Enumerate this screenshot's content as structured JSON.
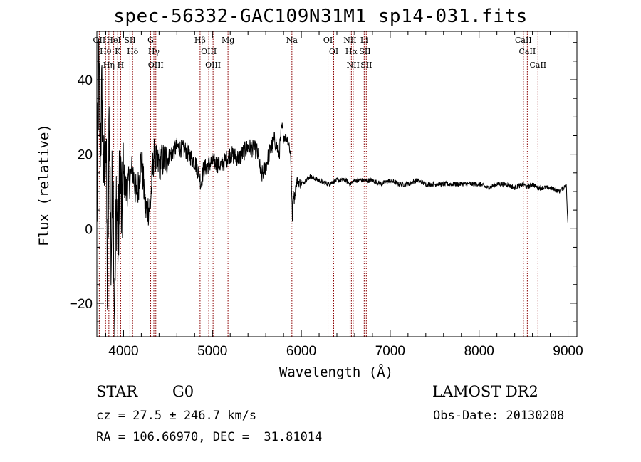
{
  "chart_data": {
    "type": "line",
    "title": "spec-56332-GAC109N31M1_sp14-031.fits",
    "xlabel": "Wavelength (Å)",
    "ylabel": "Flux (relative)",
    "xlim": [
      3700,
      9100
    ],
    "ylim": [
      -29,
      53
    ],
    "xticks": [
      4000,
      5000,
      6000,
      7000,
      8000,
      9000
    ],
    "yticks": [
      -20,
      0,
      20,
      40
    ],
    "grid": false,
    "line_color": "#000000",
    "marker_color": "#8b0000",
    "series": [
      {
        "x": [
          3700,
          3720,
          3740,
          3760,
          3780,
          3800,
          3820,
          3840,
          3860,
          3880,
          3900,
          3920,
          3940,
          3960,
          3980,
          4000,
          4030,
          4060,
          4100,
          4150,
          4200,
          4250,
          4300,
          4340,
          4380,
          4420,
          4500,
          4600,
          4700,
          4800,
          4850,
          4870,
          4900,
          5000,
          5100,
          5200,
          5300,
          5400,
          5500,
          5550,
          5600,
          5650,
          5700,
          5750,
          5780,
          5800,
          5850,
          5880,
          5900,
          5910,
          5920,
          5950,
          6000,
          6100,
          6200,
          6300,
          6400,
          6500,
          6550,
          6600,
          6700,
          6800,
          6900,
          7000,
          7100,
          7200,
          7300,
          7400,
          7500,
          7600,
          7700,
          7800,
          7900,
          8000,
          8100,
          8200,
          8300,
          8400,
          8500,
          8540,
          8600,
          8660,
          8700,
          8800,
          8900,
          8950,
          8980,
          9000
        ],
        "y": [
          2,
          40,
          25,
          35,
          10,
          30,
          -20,
          32,
          -10,
          22,
          -26,
          10,
          -5,
          18,
          2,
          14,
          10,
          12,
          16,
          8,
          19,
          5,
          6,
          20,
          17,
          18,
          19,
          22,
          21,
          18,
          15,
          12,
          16,
          18,
          17,
          20,
          19,
          22,
          21,
          14,
          17,
          21,
          24,
          20,
          27,
          25,
          24,
          20,
          2,
          10,
          8,
          13,
          12,
          14,
          13,
          12,
          13,
          13,
          12,
          13,
          13,
          13,
          12,
          13,
          12,
          12,
          13,
          12,
          12,
          12,
          12,
          12,
          12,
          12,
          11,
          12,
          12,
          11,
          12,
          11,
          12,
          11,
          11,
          11,
          10,
          11,
          12,
          0
        ]
      }
    ],
    "markers": [
      {
        "name": "OII",
        "x": 3727
      },
      {
        "name": "Hθ",
        "x": 3798
      },
      {
        "name": "Hη",
        "x": 3835
      },
      {
        "name": "HeI",
        "x": 3889
      },
      {
        "name": "K",
        "x": 3934
      },
      {
        "name": "H",
        "x": 3968
      },
      {
        "name": "SII",
        "x": 4072
      },
      {
        "name": "Hδ",
        "x": 4102
      },
      {
        "name": "G",
        "x": 4305
      },
      {
        "name": "Hγ",
        "x": 4341
      },
      {
        "name": "OIII",
        "x": 4363
      },
      {
        "name": "Hβ",
        "x": 4861
      },
      {
        "name": "OIII",
        "x": 4959
      },
      {
        "name": "OIII",
        "x": 5007
      },
      {
        "name": "Mg",
        "x": 5175
      },
      {
        "name": "Na",
        "x": 5894
      },
      {
        "name": "OI",
        "x": 6300
      },
      {
        "name": "OI",
        "x": 6364
      },
      {
        "name": "NII",
        "x": 6548
      },
      {
        "name": "Hα",
        "x": 6563
      },
      {
        "name": "NII",
        "x": 6583
      },
      {
        "name": "Li",
        "x": 6707
      },
      {
        "name": "SII",
        "x": 6716
      },
      {
        "name": "SII",
        "x": 6731
      },
      {
        "name": "CaII",
        "x": 8498
      },
      {
        "name": "CaII",
        "x": 8542
      },
      {
        "name": "CaII",
        "x": 8662
      }
    ]
  },
  "info": {
    "object_class": "STAR",
    "subclass": "G0",
    "survey": "LAMOST DR2",
    "redshift": "cz = 27.5 ± 246.7 km/s",
    "obs_date": "Obs-Date: 20130208",
    "coords": "RA = 106.66970, DEC =  31.81014"
  }
}
